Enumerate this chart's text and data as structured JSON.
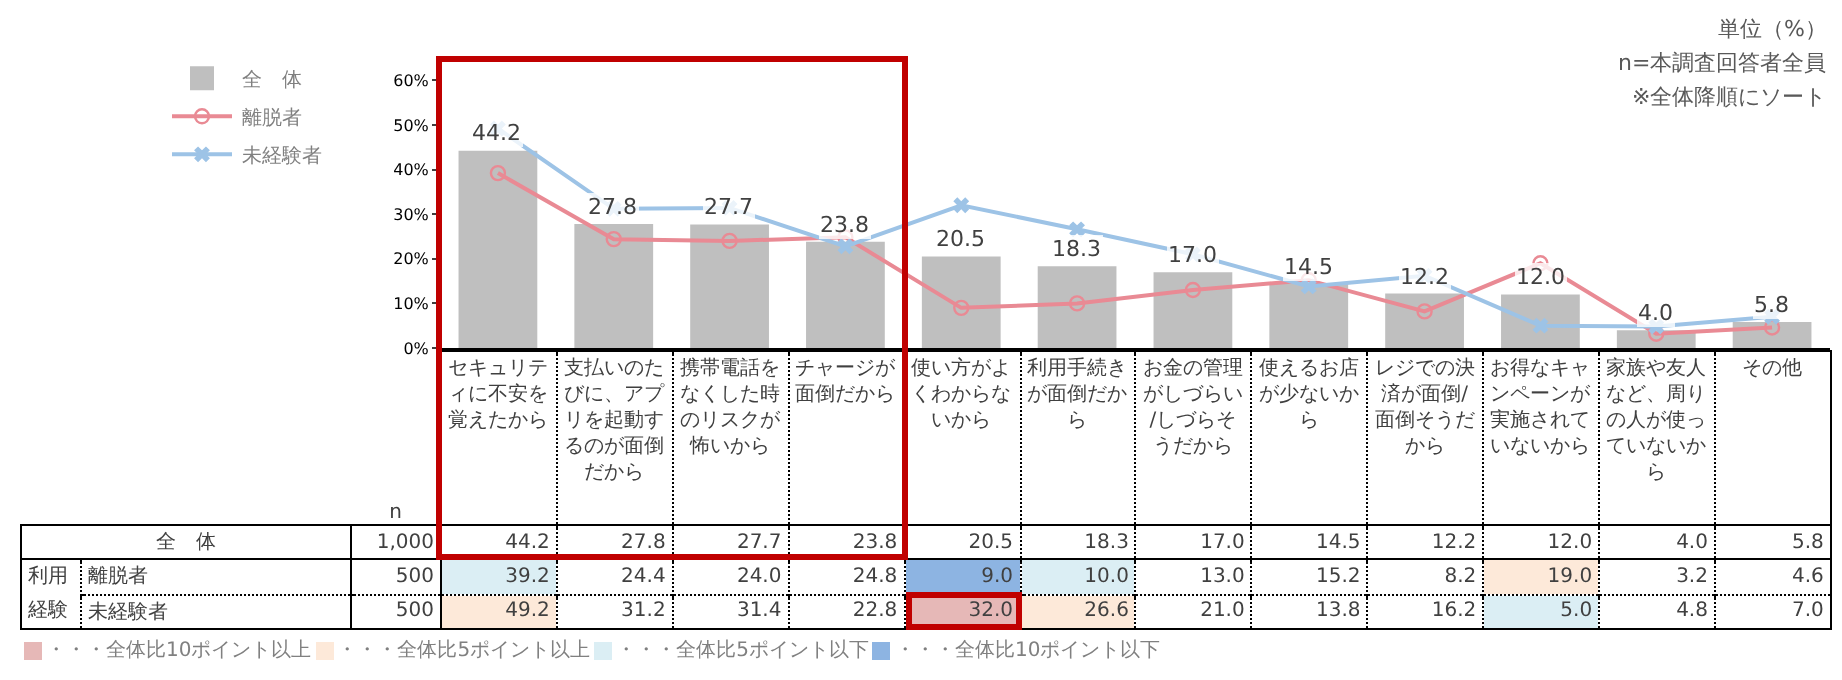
{
  "chart_data": {
    "type": "bar",
    "categories": [
      "セキュリティに不安を覚えたから",
      "支払いのたびに、アプリを起動するのが面倒だから",
      "携帯電話をなくした時のリスクが怖いから",
      "チャージが面倒だから",
      "使い方がよくわからないから",
      "利用手続きが面倒だから",
      "お金の管理がしづらい/しづらそうだから",
      "使えるお店が少ないから",
      "レジでの決済が面倒/面倒そうだから",
      "お得なキャンペーンが実施されていないから",
      "家族や友人など、周りの人が使っていないから",
      "その他"
    ],
    "series": [
      {
        "name": "全　体",
        "color": "#bfbfbf",
        "values": [
          44.2,
          27.8,
          27.7,
          23.8,
          20.5,
          18.3,
          17.0,
          14.5,
          12.2,
          12.0,
          4.0,
          5.8
        ],
        "value_labels": [
          "44.2",
          "27.8",
          "27.7",
          "23.8",
          "20.5",
          "18.3",
          "17.0",
          "14.5",
          "12.2",
          "12.0",
          "4.0",
          "5.8"
        ]
      },
      {
        "name": "離脱者",
        "type": "line",
        "color": "#e98a94",
        "marker": "circle",
        "values": [
          39.2,
          24.4,
          24.0,
          24.8,
          9.0,
          10.0,
          13.0,
          15.2,
          8.2,
          19.0,
          3.2,
          4.6
        ],
        "value_labels": [
          "39.2",
          "24.4",
          "24.0",
          "24.8",
          "9.0",
          "10.0",
          "13.0",
          "15.2",
          "8.2",
          "19.0",
          "3.2",
          "4.6"
        ]
      },
      {
        "name": "未経験者",
        "type": "line",
        "color": "#9dc3e6",
        "marker": "cross",
        "values": [
          49.2,
          31.2,
          31.4,
          22.8,
          32.0,
          26.6,
          21.0,
          13.8,
          16.2,
          5.0,
          4.8,
          7.0
        ],
        "value_labels": [
          "49.2",
          "31.2",
          "31.4",
          "22.8",
          "32.0",
          "26.6",
          "21.0",
          "13.8",
          "16.2",
          "5.0",
          "4.8",
          "7.0"
        ]
      }
    ],
    "ylim": [
      0,
      65
    ],
    "yticks": [
      {
        "value": 0,
        "label": "0%"
      },
      {
        "value": 10,
        "label": "10%"
      },
      {
        "value": 20,
        "label": "20%"
      },
      {
        "value": 30,
        "label": "30%"
      },
      {
        "value": 40,
        "label": "40%"
      },
      {
        "value": 50,
        "label": "50%"
      },
      {
        "value": 60,
        "label": "60%"
      }
    ],
    "grid": false,
    "legend": "top left",
    "annotations": [
      "単位（%）",
      "n=本調査回答者全員",
      "※全体降順にソート",
      "n",
      "1,000",
      "500",
      "500",
      "利用経験",
      "・・・全体比10ポイント以上",
      "・・・全体比5ポイント以上",
      "・・・全体比5ポイント以下",
      "・・・全体比10ポイント以下"
    ]
  }
}
